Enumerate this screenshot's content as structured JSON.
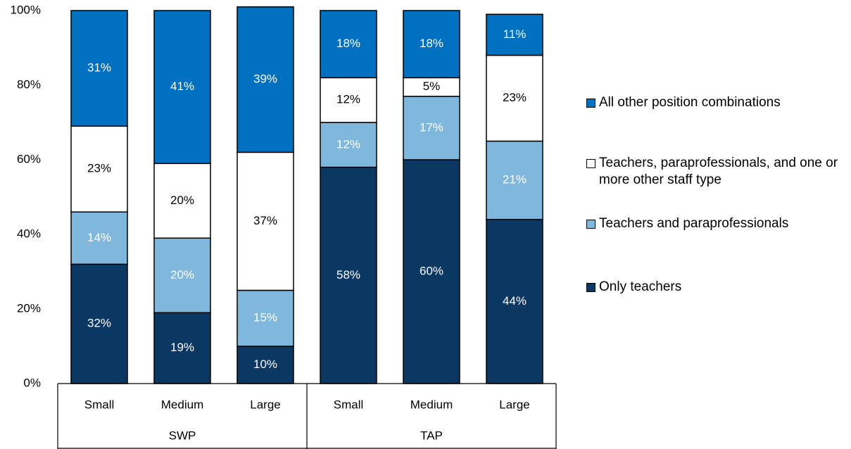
{
  "chart_data": {
    "type": "stacked_bar",
    "categories": [
      "Small",
      "Medium",
      "Large",
      "Small",
      "Medium",
      "Large"
    ],
    "category_groups": [
      "SWP",
      "TAP"
    ],
    "series": [
      {
        "name": "Only teachers",
        "color": "#0b3763",
        "label_color": "#ffffff",
        "values": [
          32,
          19,
          10,
          58,
          60,
          44
        ],
        "value_labels": [
          "32%",
          "19%",
          "10%",
          "58%",
          "60%",
          "44%"
        ]
      },
      {
        "name": "Teachers and paraprofessionals",
        "color": "#80b7dc",
        "label_color": "#ffffff",
        "values": [
          14,
          20,
          15,
          12,
          17,
          21
        ],
        "value_labels": [
          "14%",
          "20%",
          "15%",
          "12%",
          "17%",
          "21%"
        ]
      },
      {
        "name": "Teachers, paraprofessionals, and one or more other staff type",
        "color": "#ffffff",
        "label_color": "#000000",
        "values": [
          23,
          20,
          37,
          12,
          5,
          23
        ],
        "value_labels": [
          "23%",
          "20%",
          "37%",
          "12%",
          "5%",
          "23%"
        ]
      },
      {
        "name": "All other position combinations",
        "color": "#0070c0",
        "label_color": "#ffffff",
        "values": [
          31,
          41,
          39,
          18,
          18,
          11
        ],
        "value_labels": [
          "31%",
          "41%",
          "39%",
          "18%",
          "18%",
          "11%"
        ]
      }
    ],
    "ylim": [
      0,
      100
    ],
    "yticks": [
      {
        "value": 0,
        "label": "0%"
      },
      {
        "value": 20,
        "label": "20%"
      },
      {
        "value": 40,
        "label": "40%"
      },
      {
        "value": 60,
        "label": "60%"
      },
      {
        "value": 80,
        "label": "80%"
      },
      {
        "value": 100,
        "label": "100%"
      }
    ],
    "legend": "right",
    "legend_order": "reversed"
  }
}
